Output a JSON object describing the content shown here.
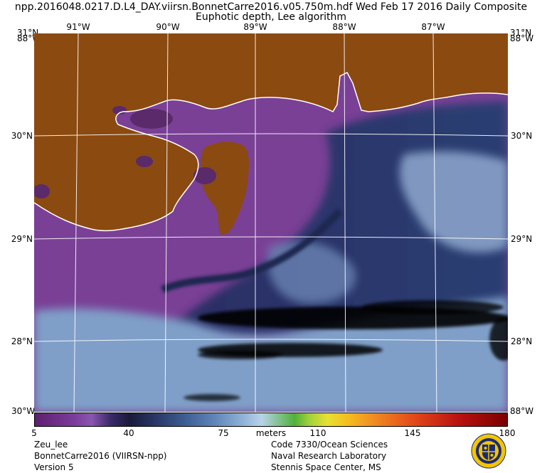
{
  "header": {
    "line1": "npp.2016048.0217.D.L4_DAY.viirsn.BonnetCarre2016.v05.750m.hdf   Wed Feb 17 2016 Daily Composite",
    "line2": "Euphotic depth, Lee algorithm"
  },
  "map": {
    "lon_top": [
      "91°W",
      "90°W",
      "89°W",
      "88°W",
      "87°W"
    ],
    "corner_top_left": "31°N",
    "corner_top_left_lon": "88°W",
    "corner_top_right": "31°N",
    "corner_top_right_lon": "88°W",
    "lat_left": [
      "30°N",
      "29°N",
      "28°N"
    ],
    "lat_right": [
      "30°N",
      "29°N",
      "28°N"
    ],
    "corner_bottom_left": "30°W",
    "corner_bottom_right": "88°W",
    "colors": {
      "land": "#8b4a0f",
      "nearshore_purple": "#8a4fa3",
      "offshore_navy": "#22285a",
      "shelf_blue": "#6f8fb8",
      "no_data": "#000000",
      "grid": "#ffffff"
    }
  },
  "colorbar": {
    "ticks": [
      "5",
      "40",
      "75",
      "110",
      "145",
      "180"
    ],
    "unit": "meters"
  },
  "footer": {
    "left": [
      "Zeu_lee",
      "BonnetCarre2016 (VIIRSN-npp)",
      "Version 5"
    ],
    "right": [
      "Code 7330/Ocean Sciences",
      "Naval Research Laboratory",
      "Stennis Space Center, MS"
    ]
  },
  "seal": {
    "name": "naval-research-laboratory-seal"
  }
}
